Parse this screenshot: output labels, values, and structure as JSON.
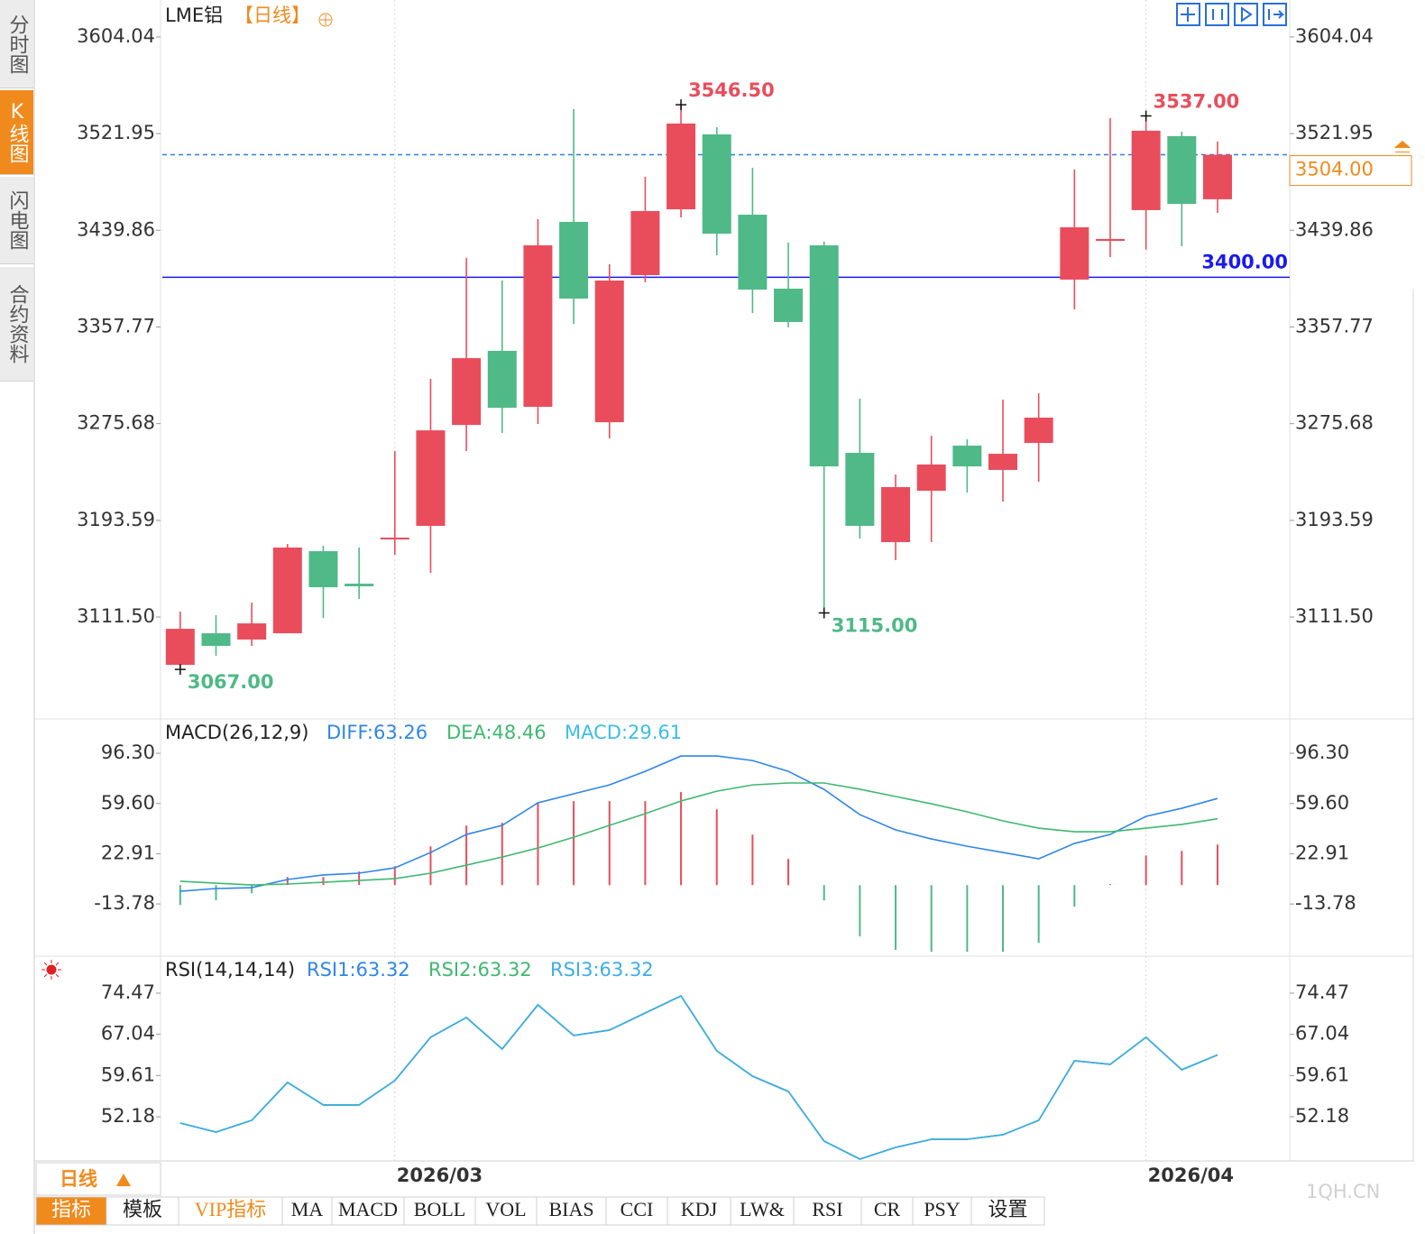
{
  "sidebar": [
    "分时图",
    "K线图",
    "闪电图",
    "合约资料"
  ],
  "period_button": "日线",
  "toolbar": [
    "指标",
    "模板",
    "VIP指标",
    "MA",
    "MACD",
    "BOLL",
    "VOL",
    "BIAS",
    "CCI",
    "KDJ",
    "LW&",
    "RSI",
    "CR",
    "PSY",
    "设置"
  ],
  "watermark": "1QH.CN",
  "chart_data": [
    {
      "type": "candlestick",
      "title": "LME铝",
      "period": "【日线】",
      "categories": [
        null,
        null,
        null,
        null,
        null,
        null,
        "2026/03",
        null,
        null,
        null,
        null,
        null,
        null,
        null,
        null,
        null,
        null,
        null,
        null,
        null,
        null,
        null,
        null,
        null,
        null,
        null,
        null,
        "2026/04",
        null,
        null
      ],
      "open": [
        3070.9,
        3097.7,
        3092.4,
        3097.7,
        3167.4,
        3139.8,
        3177.4,
        3188.9,
        3274.6,
        3337.5,
        3290.0,
        3447.0,
        3276.9,
        3401.8,
        3457.7,
        3521.3,
        3453.1,
        3390.3,
        3427.1,
        3250.9,
        3175.1,
        3218.7,
        3257.0,
        3236.4,
        3259.3,
        3398.0,
        3430.9,
        3457.0,
        3519.8,
        3466.2
      ],
      "high": [
        3116.1,
        3113.0,
        3123.7,
        3173.5,
        3172.0,
        3170.5,
        3252.4,
        3313.7,
        3416.4,
        3397.2,
        3449.3,
        3542.8,
        3411.0,
        3485.3,
        3546.5,
        3527.4,
        3493.0,
        3429.4,
        3430.2,
        3296.9,
        3232.5,
        3265.5,
        3262.4,
        3296.1,
        3301.4,
        3491.4,
        3535.1,
        3537.0,
        3523.6,
        3515.2
      ],
      "low": [
        3067.0,
        3078.6,
        3087.0,
        3097.7,
        3110.7,
        3126.8,
        3164.4,
        3149.0,
        3252.4,
        3267.8,
        3275.4,
        3360.4,
        3263.2,
        3395.7,
        3450.8,
        3418.6,
        3369.6,
        3357.4,
        3115.0,
        3178.1,
        3159.8,
        3175.1,
        3217.2,
        3209.5,
        3226.4,
        3372.7,
        3417.1,
        3423.3,
        3426.3,
        3454.7
      ],
      "close": [
        3101.5,
        3087.0,
        3106.1,
        3170.5,
        3136.8,
        3137.6,
        3178.9,
        3270.0,
        3331.3,
        3289.2,
        3427.1,
        3381.9,
        3397.2,
        3456.2,
        3530.5,
        3437.0,
        3389.5,
        3362.0,
        3239.4,
        3188.9,
        3221.8,
        3241.0,
        3239.4,
        3250.1,
        3280.8,
        3442.4,
        3432.5,
        3524.4,
        3462.3,
        3504.0
      ],
      "up_color": "#e94d5c",
      "down_color": "#4fb987",
      "ylim": [
        3026.5,
        3635.4
      ],
      "yticks": [
        3604.04,
        3521.95,
        3439.86,
        3357.77,
        3275.68,
        3193.59,
        {
          "value": 3111.5,
          "label": "3111.50"
        }
      ],
      "annotations": [
        {
          "value": 3546.5,
          "label": "3546.50"
        },
        {
          "value": 3537.0,
          "label": "3537.00"
        },
        {
          "value": 3115.0,
          "label": "3115.00"
        },
        {
          "value": 3067.0,
          "label": "3067.00"
        }
      ],
      "price_line": {
        "value": 3400.0,
        "label": "3400.00",
        "color": "#1a1aef"
      },
      "last_price": {
        "value": 3504.0,
        "label": "3504.00",
        "color": "#f08a1c",
        "line_color": "#2f7fd8"
      }
    },
    {
      "type": "macd",
      "title": "MACD(26,12,9)",
      "ylim": [
        -50.6,
        119.4
      ],
      "yticks": [
        {
          "value": 96.3,
          "label": "96.30"
        },
        {
          "value": 59.6,
          "label": "59.60"
        },
        22.91,
        -13.78
      ],
      "series": [
        {
          "name": "DIFF:63.26",
          "color": "#2f86e6",
          "values": [
            -4.5,
            -2.5,
            -1.9,
            4.1,
            7.4,
            8.7,
            12.6,
            23.8,
            37.0,
            43.6,
            60.1,
            66.7,
            73.2,
            83.1,
            94.3,
            94.3,
            91.0,
            83.1,
            69.9,
            51.5,
            40.3,
            33.7,
            28.4,
            23.8,
            19.2,
            30.4,
            37.0,
            50.2,
            56.1,
            63.26
          ]
        },
        {
          "name": "DEA:48.46",
          "color": "#3fb870",
          "values": [
            2.8,
            1.4,
            0.1,
            0.8,
            2.1,
            3.4,
            4.7,
            8.7,
            14.6,
            20.5,
            27.1,
            35.0,
            43.6,
            52.2,
            61.4,
            68.6,
            73.2,
            74.6,
            74.6,
            70.0,
            64.7,
            59.4,
            53.5,
            46.9,
            41.6,
            39.0,
            39.0,
            41.6,
            44.3,
            48.46
          ]
        }
      ],
      "histogram": {
        "name": "MACD:29.61",
        "color": "#3dbde6",
        "up_color": "#e94d5c",
        "down_color": "#4fb987",
        "values": [
          -14.5,
          -11.0,
          -6.0,
          5.9,
          5.9,
          9.9,
          13.8,
          28.3,
          43.5,
          45.5,
          60.6,
          61.3,
          61.3,
          61.3,
          67.9,
          55.3,
          36.9,
          19.1,
          -11.2,
          -37.5,
          -47.4,
          -48.7,
          -48.7,
          -48.7,
          -42.2,
          -15.8,
          0.7,
          21.7,
          25.0,
          29.61
        ]
      }
    },
    {
      "type": "line",
      "title": "RSI(14,14,14)",
      "ylim": [
        44.53,
        80.65
      ],
      "yticks": [
        74.47,
        67.04,
        59.61,
        52.18
      ],
      "series": [
        {
          "name": "RSI1:63.32",
          "color": "#2f86e6",
          "values": [
            51.04,
            49.41,
            51.53,
            58.37,
            54.3,
            54.3,
            58.7,
            66.51,
            70.08,
            64.39,
            72.36,
            66.83,
            67.8,
            70.89,
            73.98,
            64.06,
            59.5,
            56.74,
            47.79,
            44.53,
            46.65,
            48.11,
            48.11,
            48.93,
            51.53,
            62.27,
            61.62,
            66.51,
            60.65,
            63.32
          ]
        },
        {
          "name": "RSI2:63.32",
          "color": "#3fb870",
          "values": [
            51.04,
            49.41,
            51.53,
            58.37,
            54.3,
            54.3,
            58.7,
            66.51,
            70.08,
            64.39,
            72.36,
            66.83,
            67.8,
            70.89,
            73.98,
            64.06,
            59.5,
            56.74,
            47.79,
            44.53,
            46.65,
            48.11,
            48.11,
            48.93,
            51.53,
            62.27,
            61.62,
            66.51,
            60.65,
            63.32
          ]
        },
        {
          "name": "RSI3:63.32",
          "color": "#3dade6",
          "values": [
            51.04,
            49.41,
            51.53,
            58.37,
            54.3,
            54.3,
            58.7,
            66.51,
            70.08,
            64.39,
            72.36,
            66.83,
            67.8,
            70.89,
            73.98,
            64.06,
            59.5,
            56.74,
            47.79,
            44.53,
            46.65,
            48.11,
            48.11,
            48.93,
            51.53,
            62.27,
            61.62,
            66.51,
            60.65,
            63.32
          ]
        }
      ]
    }
  ]
}
